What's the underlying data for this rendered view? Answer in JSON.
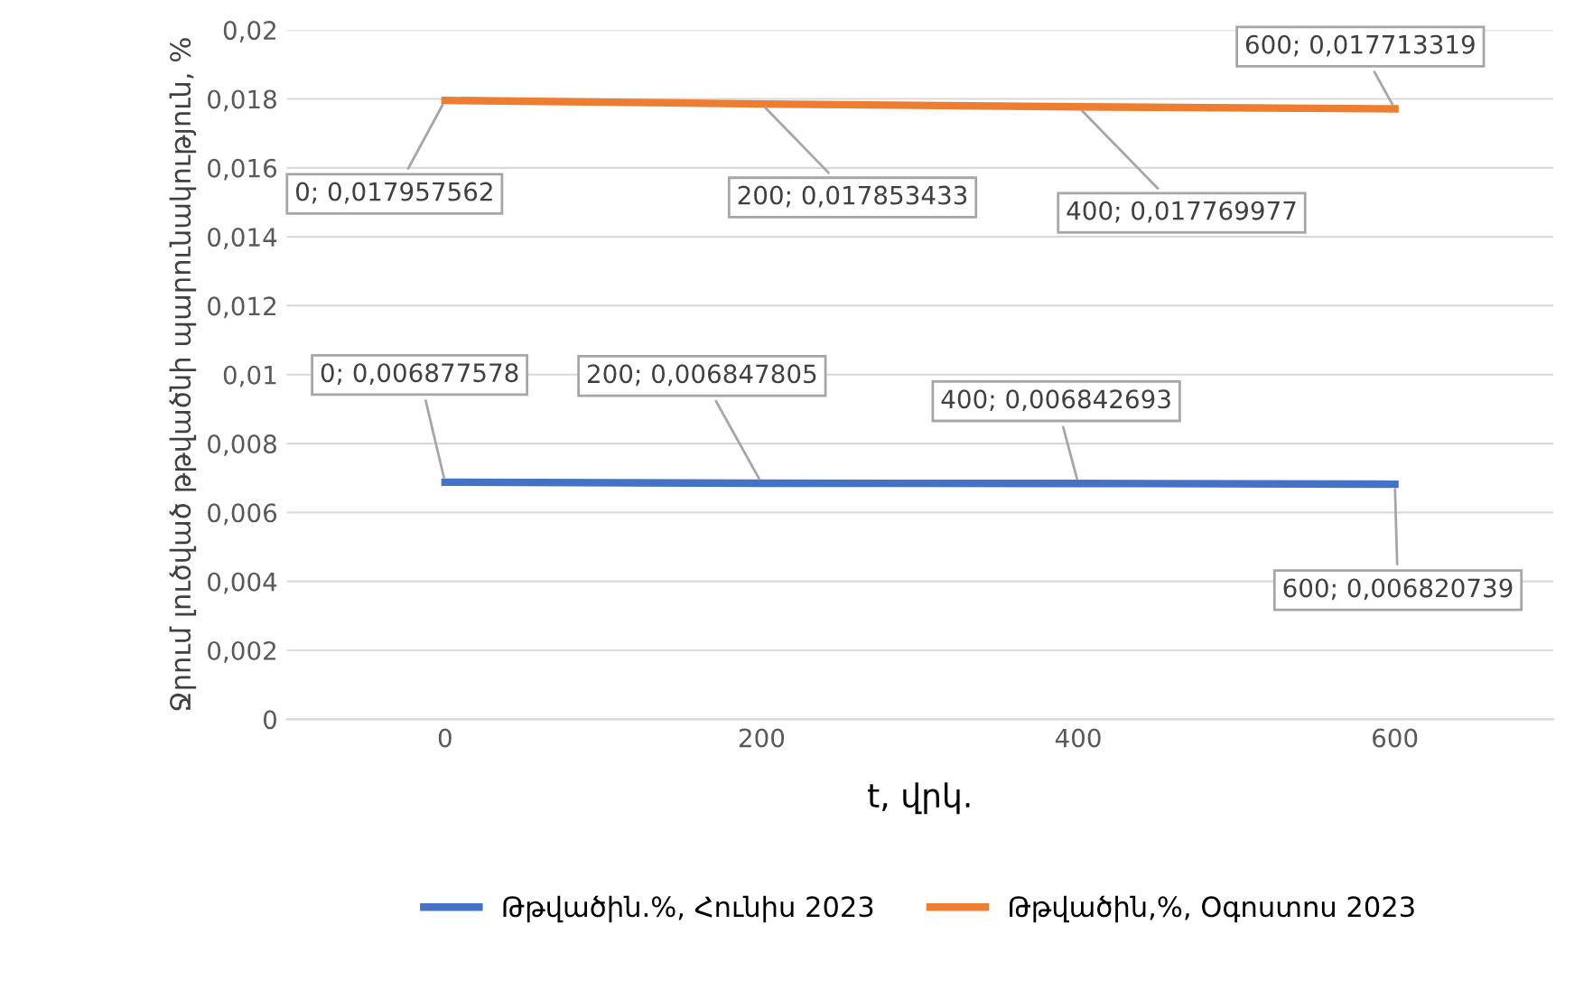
{
  "chart_data": {
    "type": "line",
    "xlabel": "t, վրկ.",
    "ylabel": "Ջրում լուծված թթվածնի պարունակություն, %",
    "x": [
      0,
      200,
      400,
      600
    ],
    "series": [
      {
        "name": "Թթվածին.%, Հունիս 2023",
        "color": "#4472c4",
        "values": [
          0.006877578,
          0.006847805,
          0.006842693,
          0.006820739
        ],
        "value_labels": [
          "0; 0,006877578",
          "200; 0,006847805",
          "400; 0,006842693",
          "600; 0,006820739"
        ]
      },
      {
        "name": "Թթվածին,%, Օգոստոս 2023",
        "color": "#ed7d31",
        "values": [
          0.017957562,
          0.017853433,
          0.017769977,
          0.017713319
        ],
        "value_labels": [
          "0; 0,017957562",
          "200; 0,017853433",
          "400; 0,017769977",
          "600; 0,017713319"
        ]
      }
    ],
    "xlim": [
      -100,
      700
    ],
    "xticks": [
      0,
      200,
      400,
      600
    ],
    "ylim": [
      0,
      0.02
    ],
    "yticks": [
      {
        "value": 0,
        "label": "0"
      },
      {
        "value": 0.002,
        "label": "0,002"
      },
      {
        "value": 0.004,
        "label": "0,004"
      },
      {
        "value": 0.006,
        "label": "0,006"
      },
      {
        "value": 0.008,
        "label": "0,008"
      },
      {
        "value": 0.01,
        "label": "0,01"
      },
      {
        "value": 0.012,
        "label": "0,012"
      },
      {
        "value": 0.014,
        "label": "0,014"
      },
      {
        "value": 0.016,
        "label": "0,016"
      },
      {
        "value": 0.018,
        "label": "0,018"
      },
      {
        "value": 0.02,
        "label": "0,02"
      }
    ],
    "grid": "y",
    "legend": "bottom",
    "marker": "none",
    "line_style": "solid"
  }
}
